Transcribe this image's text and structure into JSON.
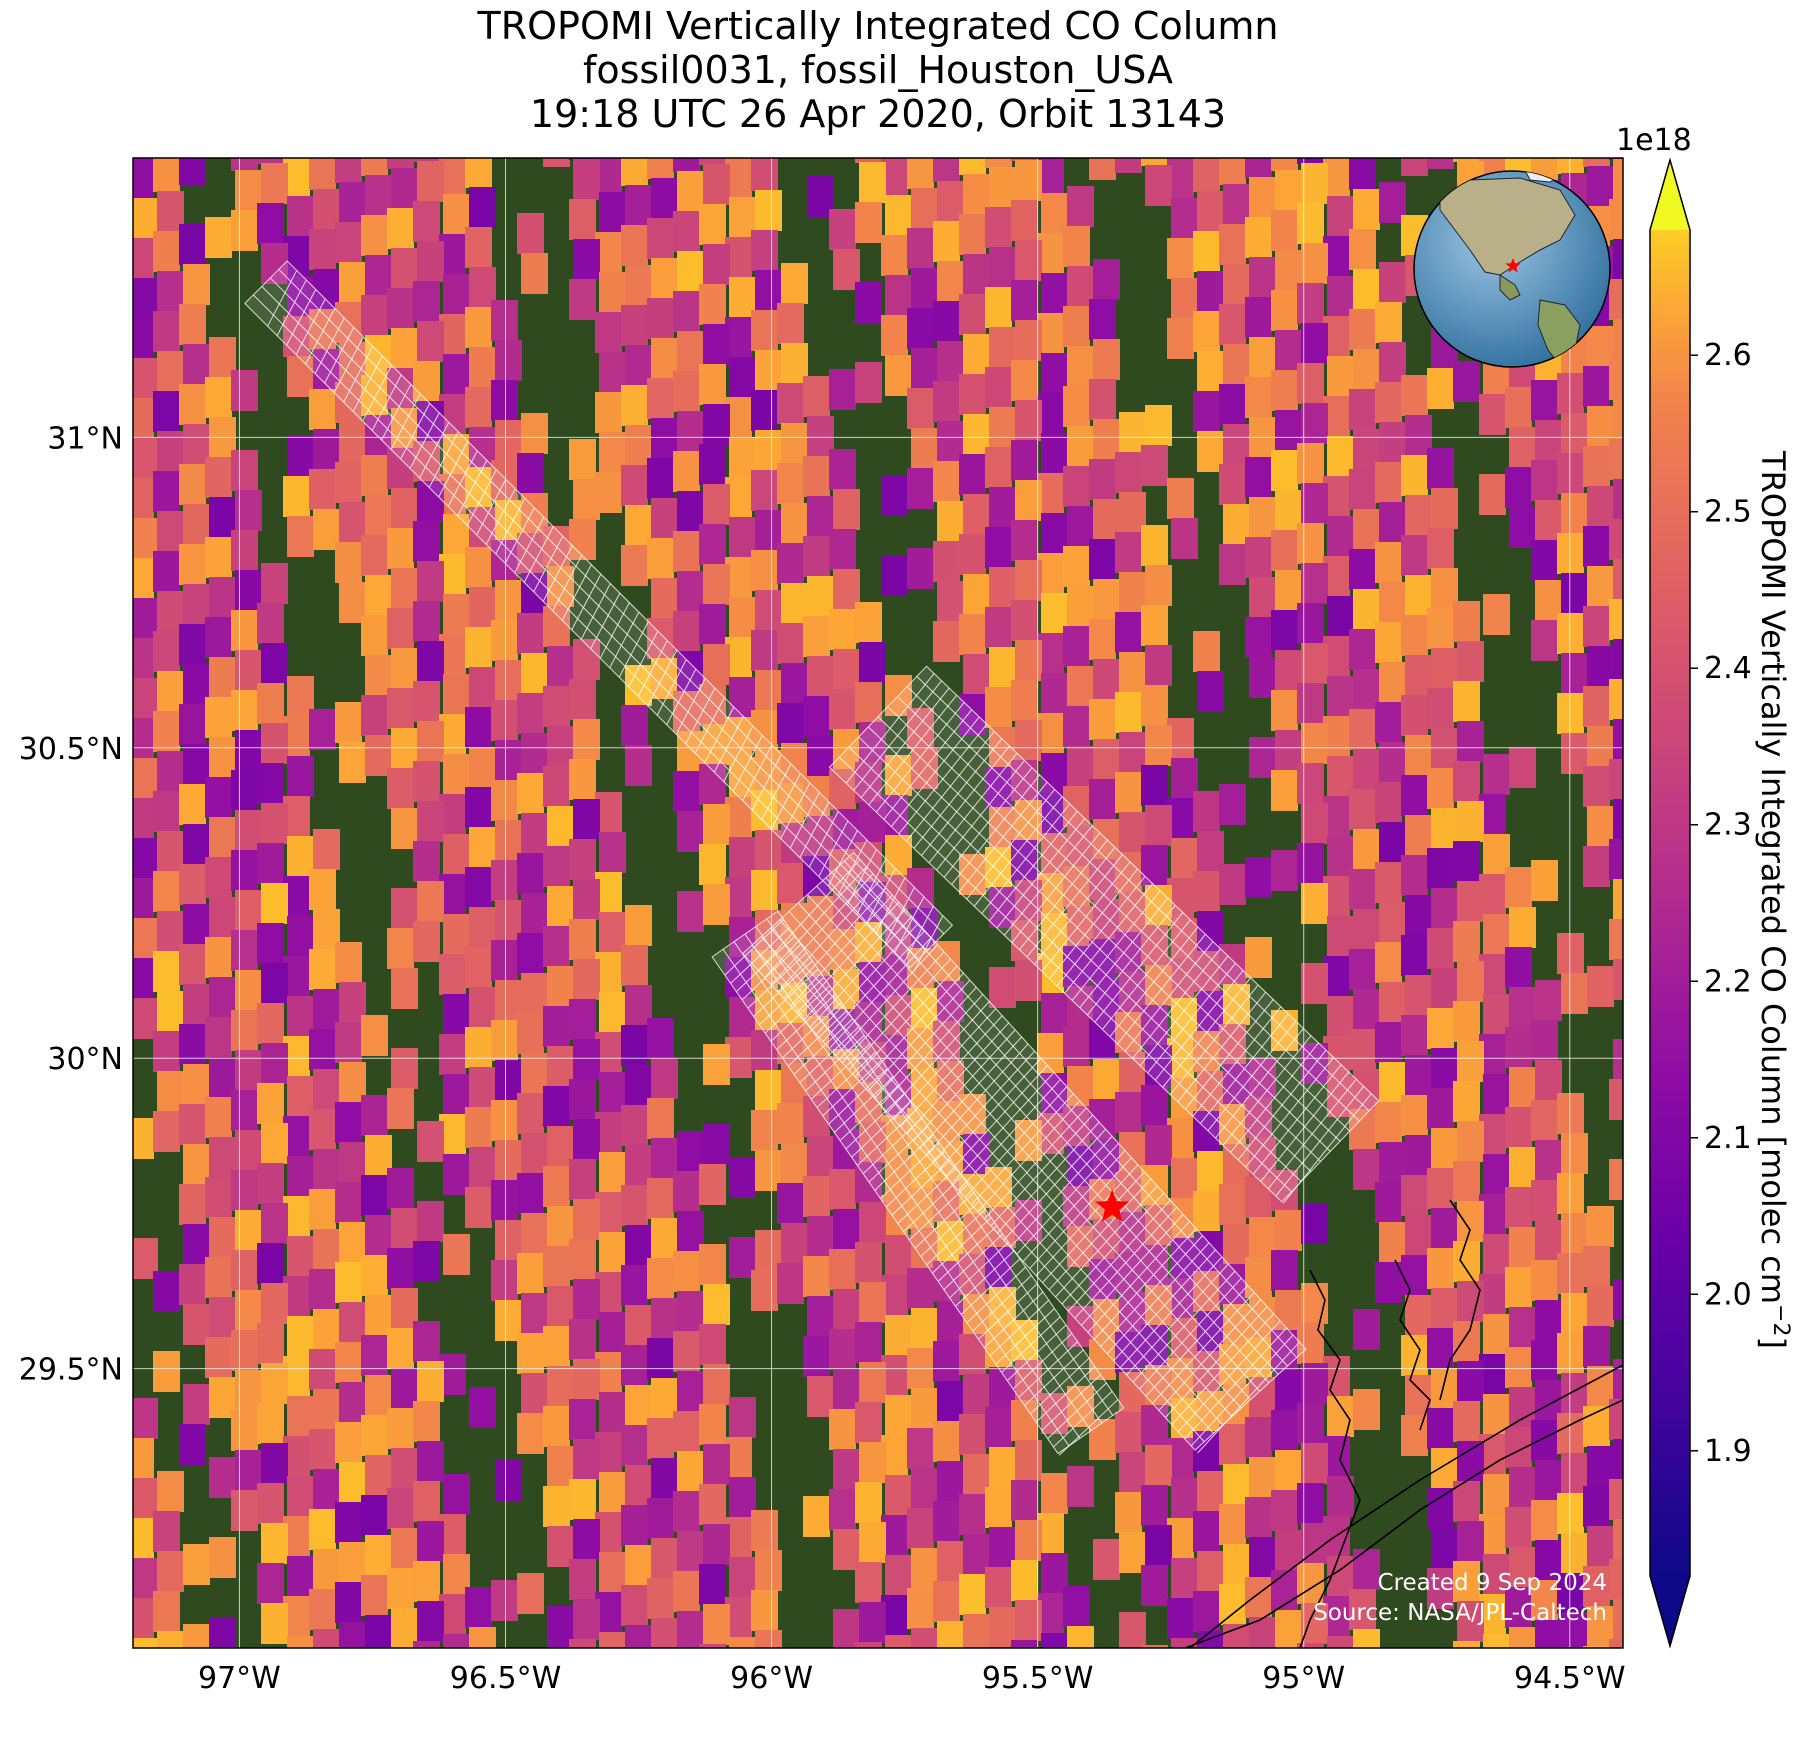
{
  "title": {
    "line1": "TROPOMI Vertically Integrated CO Column",
    "line2": "fossil0031, fossil_Houston_USA",
    "line3": "19:18 UTC 26 Apr 2020, Orbit 13143"
  },
  "map": {
    "lon_range": [
      -97.2,
      -94.4
    ],
    "lat_range": [
      29.05,
      31.45
    ],
    "lon_ticks": [
      {
        "value": -97.0,
        "label": "97°W"
      },
      {
        "value": -96.5,
        "label": "96.5°W"
      },
      {
        "value": -96.0,
        "label": "96°W"
      },
      {
        "value": -95.5,
        "label": "95.5°W"
      },
      {
        "value": -95.0,
        "label": "95°W"
      },
      {
        "value": -94.5,
        "label": "94.5°W"
      }
    ],
    "lat_ticks": [
      {
        "value": 31.0,
        "label": "31°N"
      },
      {
        "value": 30.5,
        "label": "30.5°N"
      },
      {
        "value": 30.0,
        "label": "30°N"
      },
      {
        "value": 29.5,
        "label": "29.5°N"
      }
    ],
    "gridlines": true,
    "target_marker": {
      "lon": -95.36,
      "lat": 29.76,
      "symbol": "red-star",
      "color": "#ff0000"
    },
    "inset_globe": {
      "placement": "top-right",
      "marker": "red-star"
    }
  },
  "colorbar": {
    "label": "TROPOMI Vertically Integrated CO Column [molec cm",
    "label_exponent": "−2",
    "label_close": "]",
    "scale_text": "1e18",
    "range": [
      1.82,
      2.68
    ],
    "colormap": "plasma",
    "extend": "both",
    "ticks": [
      {
        "value": 1.9,
        "label": "1.9"
      },
      {
        "value": 2.0,
        "label": "2.0"
      },
      {
        "value": 2.1,
        "label": "2.1"
      },
      {
        "value": 2.2,
        "label": "2.2"
      },
      {
        "value": 2.3,
        "label": "2.3"
      },
      {
        "value": 2.4,
        "label": "2.4"
      },
      {
        "value": 2.5,
        "label": "2.5"
      },
      {
        "value": 2.6,
        "label": "2.6"
      }
    ]
  },
  "credits": {
    "created": "Created 9 Sep 2024",
    "source": "Source: NASA/JPL-Caltech"
  }
}
